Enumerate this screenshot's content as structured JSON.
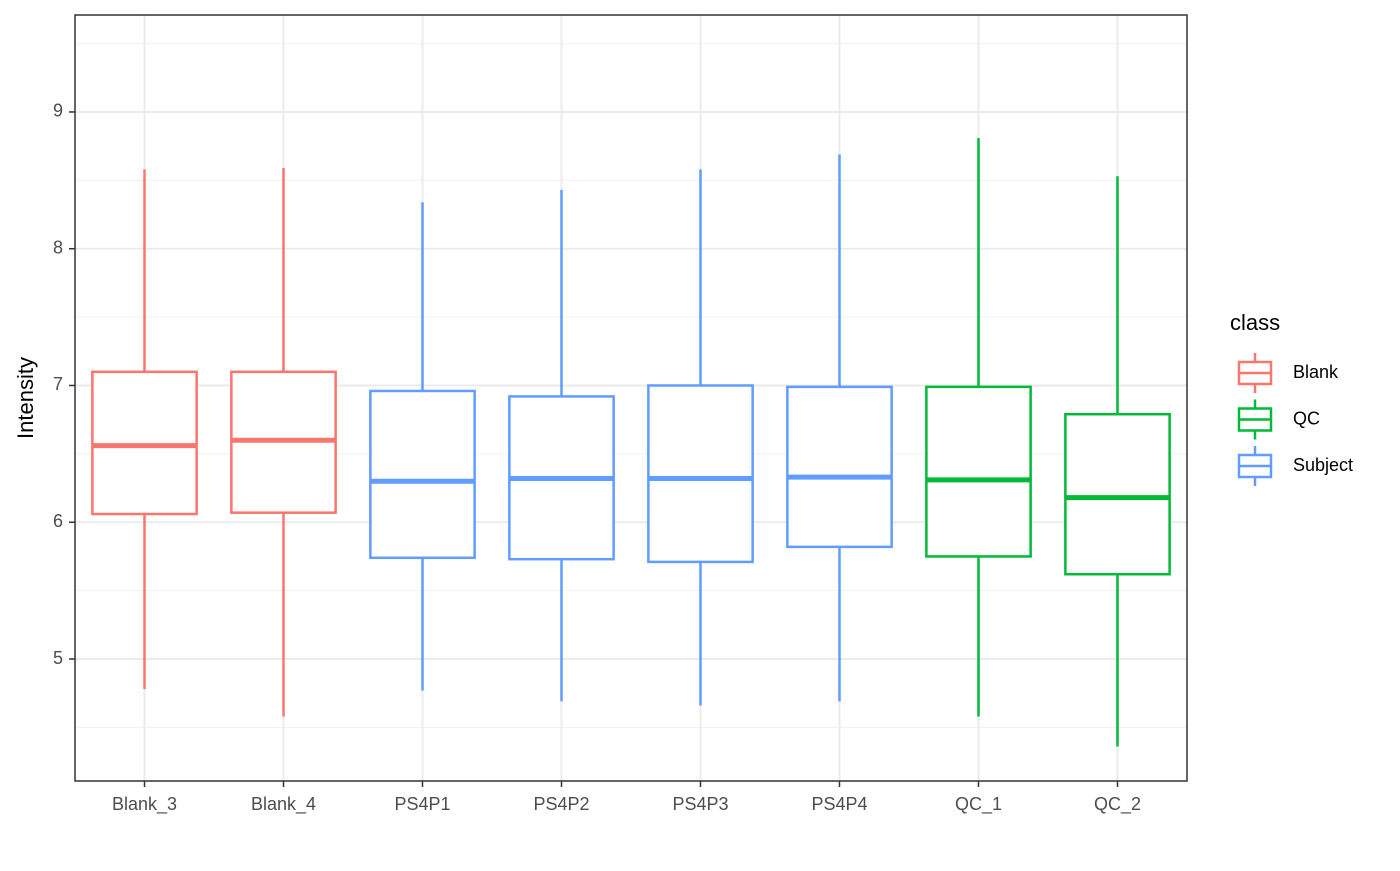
{
  "chart_data": {
    "type": "box",
    "y_label": "Intensity",
    "legend_title": "class",
    "categories": [
      "Blank_3",
      "Blank_4",
      "PS4P1",
      "PS4P2",
      "PS4P3",
      "PS4P4",
      "QC_1",
      "QC_2"
    ],
    "series": [
      {
        "name": "Blank",
        "color": "#F8766D",
        "min": [
          4.78,
          4.58,
          null,
          null,
          null,
          null,
          null,
          null
        ],
        "q1": [
          6.06,
          6.07,
          null,
          null,
          null,
          null,
          null,
          null
        ],
        "median": [
          6.56,
          6.6,
          null,
          null,
          null,
          null,
          null,
          null
        ],
        "q3": [
          7.1,
          7.1,
          null,
          null,
          null,
          null,
          null,
          null
        ],
        "max": [
          8.58,
          8.59,
          null,
          null,
          null,
          null,
          null,
          null
        ]
      },
      {
        "name": "QC",
        "color": "#00BA38",
        "min": [
          null,
          null,
          null,
          null,
          null,
          null,
          4.58,
          4.36
        ],
        "q1": [
          null,
          null,
          null,
          null,
          null,
          null,
          5.75,
          5.62
        ],
        "median": [
          null,
          null,
          null,
          null,
          null,
          null,
          6.31,
          6.18
        ],
        "q3": [
          null,
          null,
          null,
          null,
          null,
          null,
          6.99,
          6.79
        ],
        "max": [
          null,
          null,
          null,
          null,
          null,
          null,
          8.81,
          8.53
        ]
      },
      {
        "name": "Subject",
        "color": "#619CFF",
        "min": [
          null,
          null,
          4.77,
          4.69,
          4.66,
          4.69,
          null,
          null
        ],
        "q1": [
          null,
          null,
          5.74,
          5.73,
          5.71,
          5.82,
          null,
          null
        ],
        "median": [
          null,
          null,
          6.3,
          6.32,
          6.32,
          6.33,
          null,
          null
        ],
        "q3": [
          null,
          null,
          6.96,
          6.92,
          7.0,
          6.99,
          null,
          null
        ],
        "max": [
          null,
          null,
          8.34,
          8.43,
          8.58,
          8.69,
          null,
          null
        ]
      }
    ],
    "ylim": [
      4.108,
      9.709
    ],
    "yticks": [
      5,
      6,
      7,
      8,
      9
    ],
    "minor_yticks": [
      4.5,
      5.5,
      6.5,
      7.5,
      8.5,
      9.5
    ],
    "grid": true
  }
}
